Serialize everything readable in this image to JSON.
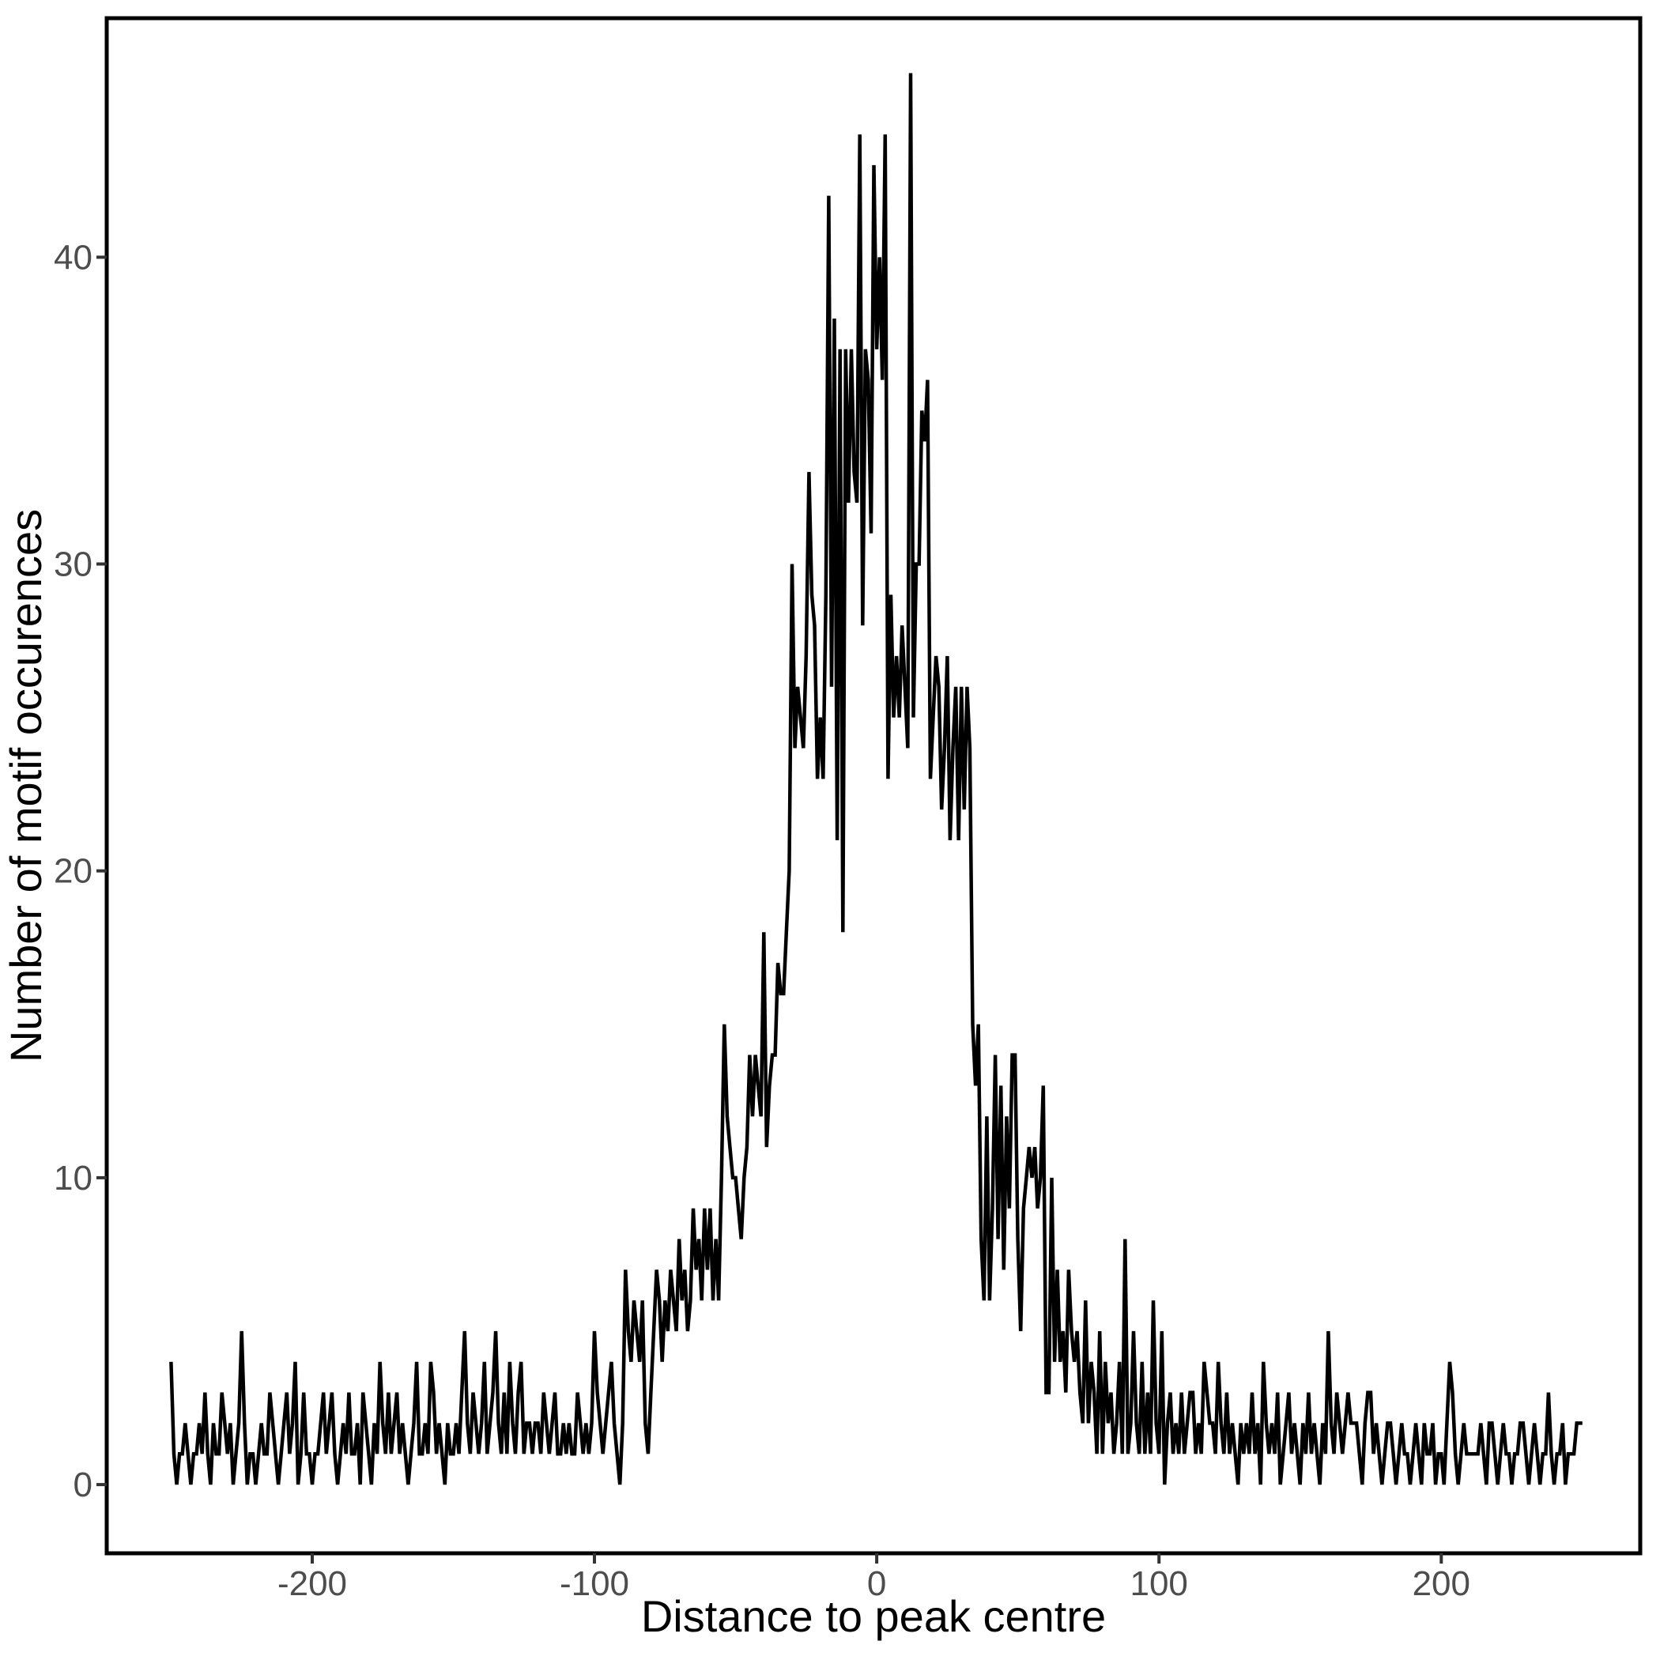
{
  "chart_data": {
    "type": "line",
    "title": "",
    "xlabel": "Distance to peak centre",
    "ylabel": "Number of motif occurences",
    "legend": null,
    "grid": false,
    "line_color": "#000000",
    "tick_label_color": "#4D4D4D",
    "axis_color": "#000000",
    "background": "#FFFFFF",
    "xlim": [
      -272.8,
      270.5
    ],
    "ylim": [
      -2.24,
      47.79
    ],
    "x_ticks": [
      -200,
      -100,
      0,
      100,
      200
    ],
    "y_ticks": [
      0,
      10,
      20,
      30,
      40
    ],
    "x_tick_labels": [
      "-200",
      "-100",
      "0",
      "100",
      "200"
    ],
    "y_tick_labels": [
      "0",
      "10",
      "20",
      "30",
      "40"
    ],
    "x_start": -250,
    "x_step": 1,
    "values": [
      4,
      1,
      0,
      1,
      1,
      2,
      1,
      0,
      1,
      1,
      2,
      1,
      3,
      1,
      0,
      2,
      1,
      1,
      3,
      2,
      1,
      2,
      0,
      1,
      2,
      5,
      2,
      0,
      1,
      1,
      0,
      1,
      2,
      1,
      1,
      3,
      2,
      1,
      0,
      1,
      2,
      3,
      1,
      2,
      4,
      0,
      1,
      3,
      1,
      1,
      0,
      1,
      1,
      2,
      3,
      1,
      2,
      3,
      1,
      0,
      1,
      2,
      1,
      3,
      1,
      1,
      2,
      0,
      3,
      2,
      1,
      0,
      2,
      1,
      4,
      2,
      1,
      3,
      1,
      2,
      3,
      1,
      2,
      1,
      0,
      1,
      2,
      4,
      1,
      1,
      2,
      1,
      4,
      3,
      1,
      2,
      1,
      0,
      2,
      1,
      1,
      2,
      1,
      3,
      5,
      2,
      1,
      3,
      2,
      1,
      2,
      4,
      1,
      2,
      3,
      5,
      2,
      1,
      3,
      1,
      4,
      2,
      1,
      3,
      4,
      1,
      2,
      2,
      1,
      2,
      2,
      1,
      3,
      2,
      1,
      2,
      3,
      1,
      1,
      2,
      1,
      2,
      1,
      1,
      3,
      2,
      1,
      2,
      1,
      2,
      5,
      3,
      2,
      1,
      2,
      3,
      4,
      2,
      1,
      0,
      2,
      7,
      5,
      4,
      6,
      5,
      4,
      6,
      2,
      1,
      3,
      5,
      7,
      6,
      4,
      6,
      5,
      7,
      6,
      5,
      8,
      6,
      7,
      5,
      6,
      9,
      7,
      8,
      6,
      9,
      7,
      9,
      6,
      8,
      6,
      10,
      15,
      12,
      11,
      10,
      10,
      9,
      8,
      10,
      11,
      14,
      12,
      14,
      13,
      12,
      18,
      11,
      13,
      14,
      14,
      17,
      16,
      16,
      18,
      20,
      30,
      24,
      26,
      25,
      24,
      27,
      33,
      29,
      28,
      23,
      25,
      23,
      29,
      42,
      26,
      38,
      21,
      37,
      18,
      37,
      32,
      37,
      33,
      32,
      44,
      28,
      37,
      36,
      31,
      43,
      37,
      40,
      36,
      44,
      23,
      29,
      25,
      27,
      25,
      28,
      26,
      24,
      46,
      25,
      30,
      30,
      35,
      34,
      36,
      23,
      25,
      27,
      26,
      22,
      24,
      27,
      21,
      24,
      26,
      21,
      26,
      22,
      26,
      24,
      15,
      13,
      15,
      8,
      6,
      12,
      6,
      9,
      14,
      8,
      13,
      7,
      12,
      9,
      14,
      14,
      8,
      5,
      9,
      10,
      11,
      10,
      11,
      9,
      10,
      13,
      3,
      3,
      10,
      4,
      7,
      4,
      5,
      3,
      7,
      5,
      4,
      5,
      3,
      2,
      6,
      2,
      4,
      3,
      1,
      5,
      1,
      4,
      2,
      3,
      1,
      2,
      4,
      1,
      8,
      1,
      2,
      5,
      2,
      1,
      4,
      1,
      3,
      1,
      6,
      2,
      1,
      5,
      0,
      2,
      3,
      1,
      2,
      1,
      3,
      1,
      2,
      3,
      3,
      1,
      2,
      1,
      4,
      3,
      2,
      2,
      1,
      4,
      2,
      1,
      3,
      1,
      2,
      1,
      0,
      2,
      1,
      2,
      1,
      3,
      1,
      2,
      0,
      4,
      2,
      1,
      2,
      1,
      3,
      0,
      1,
      2,
      3,
      1,
      2,
      1,
      0,
      2,
      1,
      3,
      1,
      2,
      1,
      0,
      2,
      1,
      5,
      2,
      1,
      3,
      2,
      1,
      2,
      3,
      2,
      2,
      2,
      1,
      0,
      2,
      3,
      3,
      1,
      2,
      1,
      0,
      1,
      2,
      2,
      1,
      0,
      1,
      2,
      1,
      1,
      0,
      1,
      2,
      1,
      0,
      2,
      1,
      1,
      2,
      0,
      1,
      1,
      0,
      2,
      4,
      3,
      1,
      0,
      1,
      2,
      1,
      1,
      1,
      1,
      1,
      2,
      1,
      0,
      2,
      2,
      1,
      0,
      1,
      2,
      1,
      1,
      0,
      1,
      1,
      2,
      2,
      1,
      0,
      1,
      2,
      1,
      0,
      1,
      1,
      3,
      1,
      0,
      1,
      1,
      2,
      0,
      1,
      1,
      1,
      2,
      2,
      2
    ]
  }
}
